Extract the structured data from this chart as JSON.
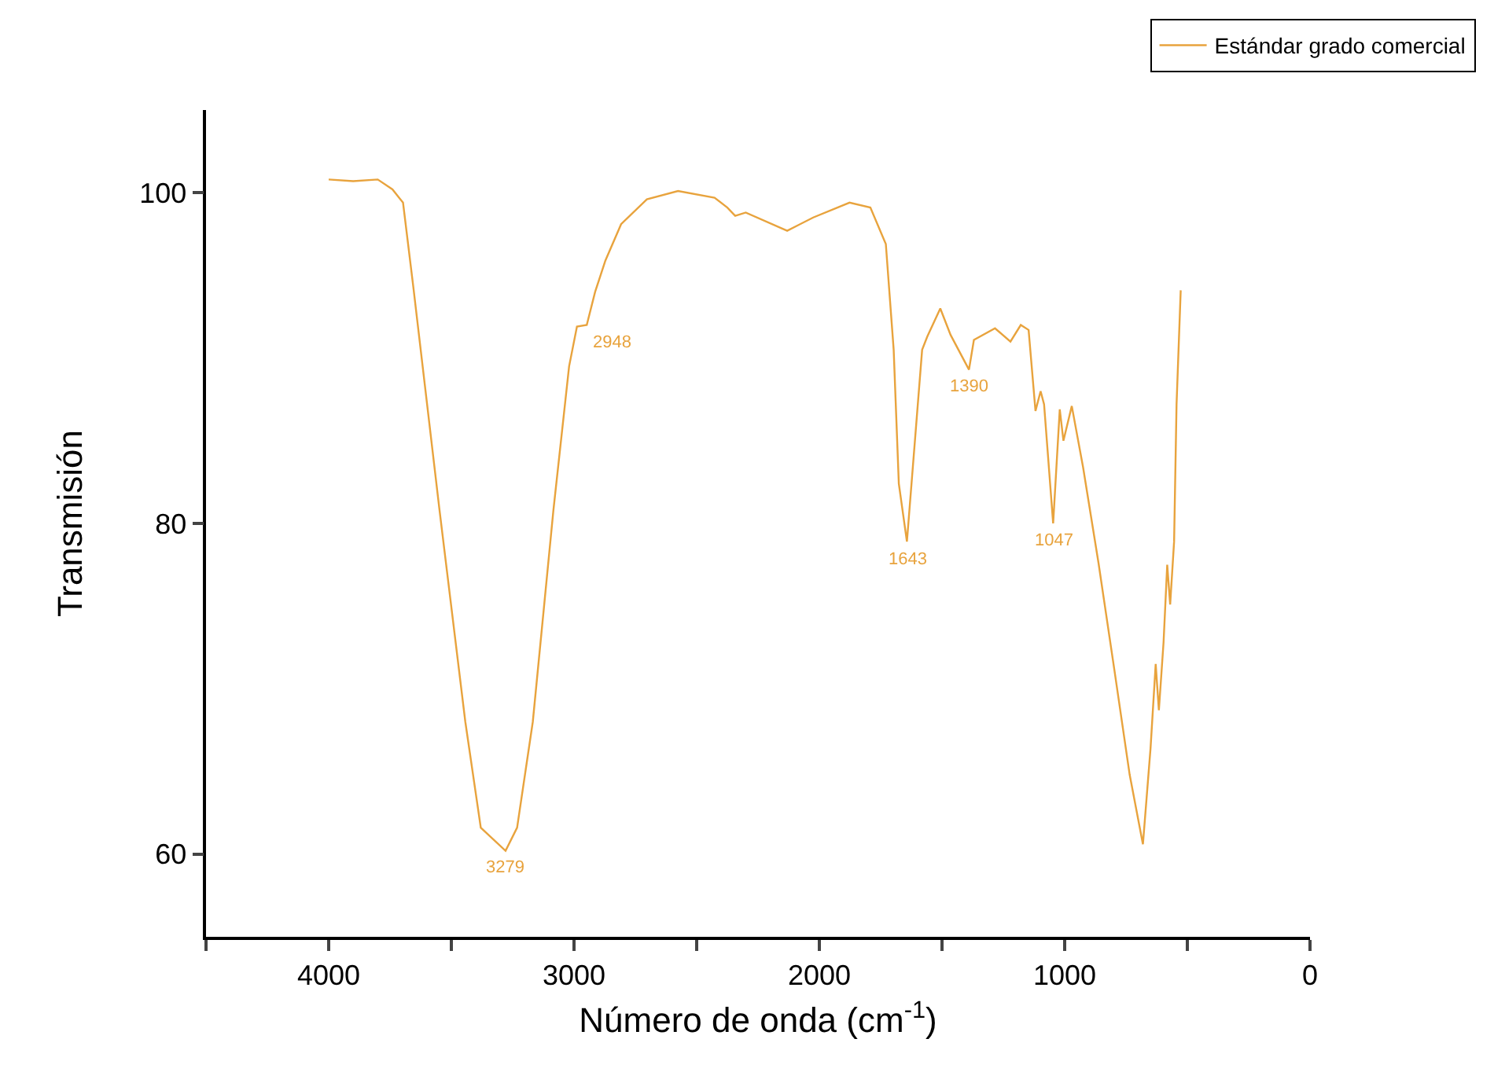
{
  "chart_data": {
    "type": "line",
    "xlabel": "Número de onda (cm$^{-1}$)",
    "ylabel": "Transmisión",
    "xlim": [
      4500,
      0
    ],
    "xticks": [
      {
        "value": 4500,
        "label": null
      },
      4000,
      {
        "value": 3500,
        "label": null
      },
      3000,
      {
        "value": 2500,
        "label": null
      },
      2000,
      {
        "value": 1500,
        "label": null
      },
      1000,
      {
        "value": 500,
        "label": null
      },
      0
    ],
    "ylim": [
      55,
      105
    ],
    "yticks": [
      60,
      80,
      100
    ],
    "grid": false,
    "legend": "top right",
    "marker": "none",
    "line_style": "solid",
    "series": [
      {
        "name": "Estándar grado comercial",
        "color": "#e8a33d",
        "x": [
          4000,
          3900,
          3800,
          3740,
          3697,
          3655,
          3549,
          3443,
          3380,
          3279,
          3232,
          3168,
          3084,
          3020,
          2988,
          2948,
          2914,
          2872,
          2808,
          2703,
          2576,
          2427,
          2375,
          2343,
          2300,
          2131,
          2025,
          1877,
          1792,
          1729,
          1697,
          1676,
          1643,
          1581,
          1560,
          1507,
          1465,
          1390,
          1370,
          1284,
          1221,
          1179,
          1147,
          1119,
          1098,
          1084,
          1047,
          1020,
          1005,
          971,
          925,
          862,
          798,
          735,
          681,
          650,
          629,
          616,
          597,
          582,
          570,
          554,
          544,
          527
        ],
        "values": [
          100.8,
          100.7,
          100.8,
          100.2,
          99.4,
          94.3,
          80.9,
          68.0,
          61.6,
          60.2,
          61.6,
          68.0,
          80.8,
          89.5,
          91.9,
          92.0,
          94.0,
          95.9,
          98.1,
          99.6,
          100.1,
          99.7,
          99.1,
          98.6,
          98.8,
          97.7,
          98.5,
          99.4,
          99.1,
          96.9,
          90.5,
          82.4,
          78.9,
          90.5,
          91.3,
          93.0,
          91.4,
          89.3,
          91.1,
          91.8,
          91.0,
          92.0,
          91.7,
          86.8,
          88.0,
          87.2,
          80.0,
          86.9,
          85.0,
          87.1,
          83.4,
          77.6,
          71.2,
          64.8,
          60.6,
          66.4,
          71.5,
          68.7,
          72.8,
          77.5,
          75.1,
          78.9,
          87.2,
          94.1
        ]
      }
    ],
    "annotations": [
      {
        "text": "3279",
        "x": 3279,
        "y": 60.2
      },
      {
        "text": "2948",
        "x": 2948,
        "y": 92.0
      },
      {
        "text": "1643",
        "x": 1643,
        "y": 78.9
      },
      {
        "text": "1390",
        "x": 1390,
        "y": 89.3
      },
      {
        "text": "1047",
        "x": 1047,
        "y": 80.0
      }
    ]
  }
}
